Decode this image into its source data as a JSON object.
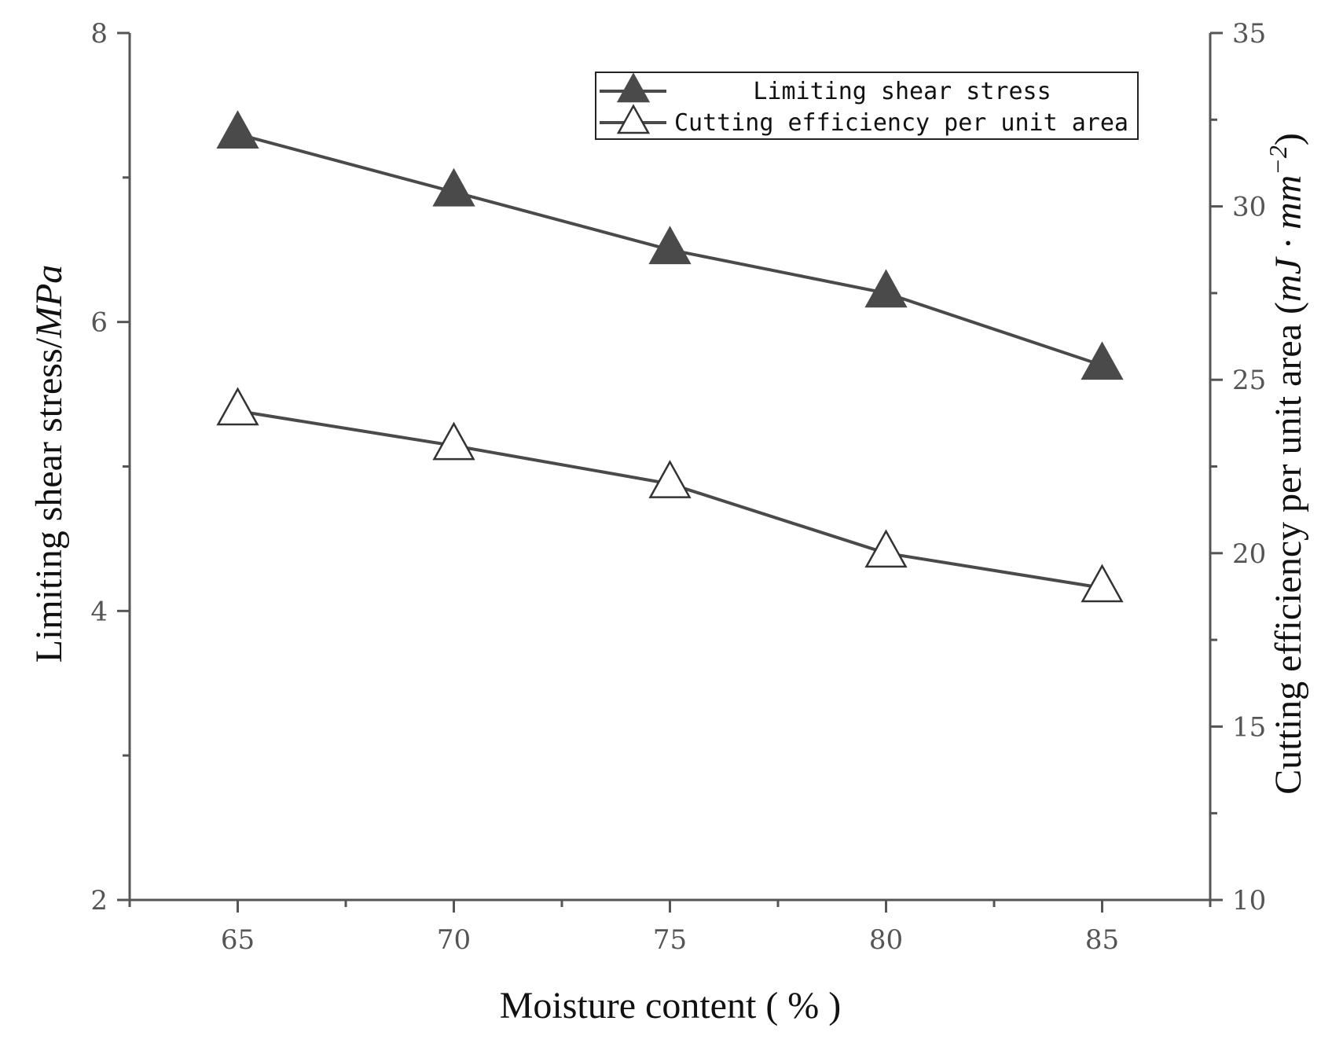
{
  "chart_data": {
    "type": "line",
    "x": [
      65,
      70,
      75,
      80,
      85
    ],
    "xlabel": "Moisture content ( % )",
    "xlim": [
      62.5,
      87.5
    ],
    "xticks": [
      "65",
      "70",
      "75",
      "80",
      "85"
    ],
    "ylabel_left_text": "Limiting shear stress/",
    "ylabel_left_unit": "MPa",
    "ylim_left": [
      2,
      8
    ],
    "yticks_left": [
      "2",
      "4",
      "6",
      "8"
    ],
    "ylabel_right_text": "Cutting efficiency per unit area (",
    "ylabel_right_unit": "mJ · mm",
    "ylabel_right_exp": "−2",
    "ylabel_right_close": ")",
    "ylim_right": [
      10,
      35
    ],
    "yticks_right": [
      "10",
      "15",
      "20",
      "25",
      "30",
      "35"
    ],
    "grid": false,
    "legend_position": "top-right",
    "series": [
      {
        "name": "Limiting shear stress",
        "axis": "left",
        "marker": "filled-triangle",
        "values": [
          7.3,
          6.9,
          6.5,
          6.2,
          5.7
        ]
      },
      {
        "name": "Cutting efficiency per unit area",
        "axis": "right",
        "marker": "open-triangle",
        "values": [
          24.1,
          23.1,
          22.0,
          20.0,
          19.0
        ]
      }
    ],
    "colors": {
      "line": "#4a4a4a",
      "filled_marker": "#4a4a4a",
      "axis": "#555555"
    }
  }
}
